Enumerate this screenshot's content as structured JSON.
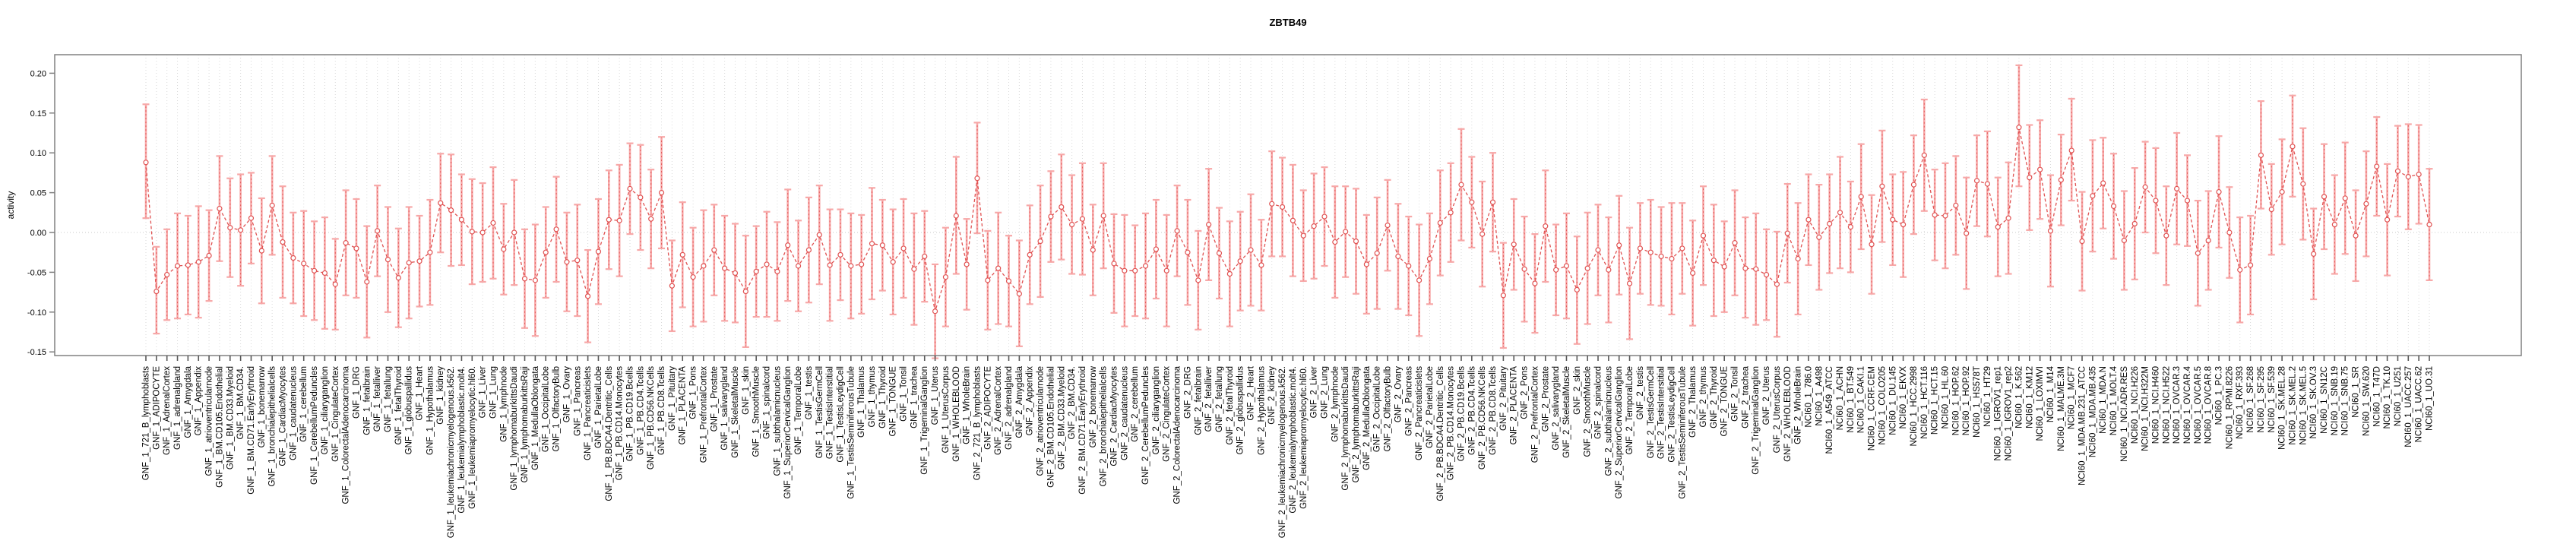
{
  "title": "ZBTB49",
  "ylabel": "activity",
  "chart_data": {
    "type": "line",
    "title": "ZBTB49",
    "xlabel": "",
    "ylabel": "activity",
    "legend": "none",
    "grid": "vertical dotted gridline per category; horizontal dotted line at 0.00",
    "ylim": [
      -0.155,
      0.223
    ],
    "ytick_values": [
      0.2,
      0.15,
      0.1,
      0.05,
      0.0,
      -0.05,
      -0.1,
      -0.15
    ],
    "ytick_labels": [
      "0.20",
      "0.15",
      "0.10",
      "0.05",
      "0.00",
      "-0.05",
      "-0.10",
      "-0.15"
    ],
    "series_name": "activity",
    "line_color": "#e05252",
    "errorbar_color": "#f7a8a8",
    "marker": "open-circle",
    "categories": [
      "GNF_1_721_B_lymphoblasts",
      "GNF_1_ADIPOCYTE",
      "GNF_1_AdrenalCortex",
      "GNF_1_adrenalgland",
      "GNF_1_Amygdala",
      "GNF_1_Appendix",
      "GNF_1_atrioventricularnode",
      "GNF_1_BM.CD105.Endothelial",
      "GNF_1_BM.CD33.Myeloid",
      "GNF_1_BM.CD34.",
      "GNF_1_BM.CD71.EarlyErythroid",
      "GNF_1_bonemarrow",
      "GNF_1_bronchialepithelialcells",
      "GNF_1_CardiacMyocytes",
      "GNF_1_caudatenucleus",
      "GNF_1_cerebellum",
      "GNF_1_CerebellumPeduncles",
      "GNF_1_ciliaryganglion",
      "GNF_1_CingulateCortex",
      "GNF_1_ColorectalAdenocarcinoma",
      "GNF_1_DRG",
      "GNF_1_fetalbrain",
      "GNF_1_fetalliver",
      "GNF_1_fetallung",
      "GNF_1_fetalThyroid",
      "GNF_1_globuspallidus",
      "GNF_1_Heart",
      "GNF_1_Hypothalamus",
      "GNF_1_kidney",
      "GNF_1_leukemiachronicmyelogenous.k562.",
      "GNF_1_leukemialymphoblastic.molt4.",
      "GNF_1_leukemiapromyelocytic.hl60.",
      "GNF_1_Liver",
      "GNF_1_Lung",
      "GNF_1_lymphnode",
      "GNF_1_lymphomaburkittsDaudi",
      "GNF_1_lymphomaburkittsRaji",
      "GNF_1_MedullaOblongata",
      "GNF_1_OccipitalLobe",
      "GNF_1_OlfactoryBulb",
      "GNF_1_Ovary",
      "GNF_1_Pancreas",
      "GNF_1_Pancreaticislets",
      "GNF_1_ParietalLobe",
      "GNF_1_PB.BDCA4.Dentritic_Cells",
      "GNF_1_PB.CD14.Monocytes",
      "GNF_1_PB.CD19.Bcells",
      "GNF_1_PB.CD4.Tcells",
      "GNF_1_PB.CD56.NKCells",
      "GNF_1_PB.CD8.Tcells",
      "GNF_1_Pituitary",
      "GNF_1_PLACENTA",
      "GNF_1_Pons",
      "GNF_1_PrefrontalCortex",
      "GNF_1_Prostate",
      "GNF_1_salivarygland",
      "GNF_1_SkeletalMuscle",
      "GNF_1_skin",
      "GNF_1_SmoothMuscle",
      "GNF_1_spinalcord",
      "GNF_1_subthalamicnucleus",
      "GNF_1_SuperiorCervicalGanglion",
      "GNF_1_TemporalLobe",
      "GNF_1_testis",
      "GNF_1_TestisGermCell",
      "GNF_1_TestisInterstitial",
      "GNF_1_TestisLeydigCell",
      "GNF_1_TestisSeminiferousTubule",
      "GNF_1_Thalamus",
      "GNF_1_thymus",
      "GNF_1_Thyroid",
      "GNF_1_TONGUE",
      "GNF_1_Tonsil",
      "GNF_1_trachea",
      "GNF_1_TrigeminalGanglion",
      "GNF_1_Uterus",
      "GNF_1_UterusCorpus",
      "GNF_1_WHOLEBLOOD",
      "GNF_1_WholeBrain",
      "GNF_2_721_B_lymphoblasts",
      "GNF_2_ADIPOCYTE",
      "GNF_2_AdrenalCortex",
      "GNF_2_adrenalgland",
      "GNF_2_Amygdala",
      "GNF_2_Appendix",
      "GNF_2_atrioventricularnode",
      "GNF_2_BM.CD105.Endothelial",
      "GNF_2_BM.CD33.Myeloid",
      "GNF_2_BM.CD34.",
      "GNF_2_BM.CD71.EarlyErythroid",
      "GNF_2_bonemarrow",
      "GNF_2_bronchialepithelialcells",
      "GNF_2_CardiacMyocytes",
      "GNF_2_caudatenucleus",
      "GNF_2_cerebellum",
      "GNF_2_CerebellumPeduncles",
      "GNF_2_ciliaryganglion",
      "GNF_2_CingulateCortex",
      "GNF_2_ColorectalAdenocarcinoma",
      "GNF_2_DRG",
      "GNF_2_fetalbrain",
      "GNF_2_fetalliver",
      "GNF_2_fetallung",
      "GNF_2_fetalThyroid",
      "GNF_2_globuspallidus",
      "GNF_2_Heart",
      "GNF_2_Hypothalamus",
      "GNF_2_kidney",
      "GNF_2_leukemiachronicmyelogenous.k562.",
      "GNF_2_leukemialymphoblastic.molt4.",
      "GNF_2_leukemiapromyelocytic.hl60.",
      "GNF_2_Liver",
      "GNF_2_Lung",
      "GNF_2_lymphnode",
      "GNF_2_lymphomaburkittsDaudi",
      "GNF_2_lymphomaburkittsRaji",
      "GNF_2_MedullaOblongata",
      "GNF_2_OccipitalLobe",
      "GNF_2_OlfactoryBulb",
      "GNF_2_Ovary",
      "GNF_2_Pancreas",
      "GNF_2_Pancreaticislets",
      "GNF_2_ParietalLobe",
      "GNF_2_PB.BDCA4.Dentritic_Cells",
      "GNF_2_PB.CD14.Monocytes",
      "GNF_2_PB.CD19.Bcells",
      "GNF_2_PB.CD4.Tcells",
      "GNF_2_PB.CD56.NKCells",
      "GNF_2_PB.CD8.Tcells",
      "GNF_2_Pituitary",
      "GNF_2_PLACENTA",
      "GNF_2_Pons",
      "GNF_2_PrefrontalCortex",
      "GNF_2_Prostate",
      "GNF_2_salivarygland",
      "GNF_2_SkeletalMuscle",
      "GNF_2_skin",
      "GNF_2_SmoothMuscle",
      "GNF_2_spinalcord",
      "GNF_2_subthalamicnucleus",
      "GNF_2_SuperiorCervicalGanglion",
      "GNF_2_TemporalLobe",
      "GNF_2_testis",
      "GNF_2_TestisGermCell",
      "GNF_2_TestisInterstitial",
      "GNF_2_TestisLeydigCell",
      "GNF_2_TestisSeminiferousTubule",
      "GNF_2_Thalamus",
      "GNF_2_thymus",
      "GNF_2_Thyroid",
      "GNF_2_TONGUE",
      "GNF_2_Tonsil",
      "GNF_2_trachea",
      "GNF_2_TrigeminalGanglion",
      "GNF_2_Uterus",
      "GNF_2_UterusCorpus",
      "GNF_2_WHOLEBLOOD",
      "GNF_2_WholeBrain",
      "NCI60_1_786.0",
      "NCI60_1_A498",
      "NCI60_1_A549_ATCC",
      "NCI60_1_ACHN",
      "NCI60_1_BT.549",
      "NCI60_1_CAKI.1",
      "NCI60_1_CCRF.CEM",
      "NCI60_1_COLO205",
      "NCI60_1_DU.145",
      "NCI60_1_EKVX",
      "NCI60_1_HCC.2998",
      "NCI60_1_HCT.116",
      "NCI60_1_HCT.15",
      "NCI60_1_HL.60",
      "NCI60_1_HOP.62",
      "NCI60_1_HOP.92",
      "NCI60_1_HS578T",
      "NCI60_1_HT29",
      "NCI60_1_IGROV1_rep1",
      "NCI60_1_IGROV1_rep2",
      "NCI60_1_K.562",
      "NCI60_1_KM12",
      "NCI60_1_LOXIMVI",
      "NCI60_1_M14",
      "NCI60_1_MALME.3M",
      "NCI60_1_MCF7",
      "NCI60_1_MDA.MB.231_ATCC",
      "NCI60_1_MDA.MB.435",
      "NCI60_1_MDA.N",
      "NCI60_1_MOLT.4",
      "NCI60_1_NCI.ADR.RES",
      "NCI60_1_NCI.H226",
      "NCI60_1_NCI.H322M",
      "NCI60_1_NCI.H460",
      "NCI60_1_NCI.H522",
      "NCI60_1_OVCAR.3",
      "NCI60_1_OVCAR.4",
      "NCI60_1_OVCAR.5",
      "NCI60_1_OVCAR.8",
      "NCI60_1_PC.3",
      "NCI60_1_RPMI.8226",
      "NCI60_1_RXF.393",
      "NCI60_1_SF.268",
      "NCI60_1_SF.295",
      "NCI60_1_SF.539",
      "NCI60_1_SK.MEL.28",
      "NCI60_1_SK.MEL.2",
      "NCI60_1_SK.MEL.5",
      "NCI60_1_SK.OV.3",
      "NCI60_1_SN12C",
      "NCI60_1_SNB.19",
      "NCI60_1_SNB.75",
      "NCI60_1_SR",
      "NCI60_1_SW.620",
      "NCI60_1_T47D",
      "NCI60_1_TK.10",
      "NCI60_1_U251",
      "NCI60_1_UACC.257",
      "NCI60_1_UACC.62",
      "NCI60_1_UO.31"
    ],
    "values": [
      0.088,
      -0.074,
      -0.053,
      -0.042,
      -0.041,
      -0.037,
      -0.029,
      0.03,
      0.006,
      0.003,
      0.018,
      -0.023,
      0.034,
      -0.012,
      -0.032,
      -0.039,
      -0.048,
      -0.051,
      -0.065,
      -0.013,
      -0.02,
      -0.062,
      0.002,
      -0.034,
      -0.057,
      -0.038,
      -0.036,
      -0.025,
      0.037,
      0.028,
      0.016,
      0.001,
      0.0,
      0.012,
      -0.021,
      0.0,
      -0.058,
      -0.06,
      -0.025,
      0.004,
      -0.037,
      -0.035,
      -0.08,
      -0.024,
      0.016,
      0.015,
      0.055,
      0.044,
      0.017,
      0.05,
      -0.067,
      -0.028,
      -0.056,
      -0.042,
      -0.022,
      -0.045,
      -0.051,
      -0.074,
      -0.049,
      -0.04,
      -0.049,
      -0.016,
      -0.042,
      -0.022,
      -0.003,
      -0.041,
      -0.028,
      -0.042,
      -0.04,
      -0.014,
      -0.016,
      -0.037,
      -0.02,
      -0.046,
      -0.03,
      -0.099,
      -0.056,
      0.021,
      -0.04,
      0.068,
      -0.06,
      -0.045,
      -0.061,
      -0.077,
      -0.028,
      -0.011,
      0.02,
      0.032,
      0.01,
      0.017,
      -0.022,
      0.021,
      -0.039,
      -0.048,
      -0.048,
      -0.042,
      -0.021,
      -0.048,
      0.002,
      -0.025,
      -0.06,
      0.01,
      -0.026,
      -0.052,
      -0.036,
      -0.022,
      -0.041,
      0.036,
      0.032,
      0.015,
      -0.004,
      0.008,
      0.02,
      -0.012,
      0.001,
      -0.011,
      -0.04,
      -0.026,
      0.009,
      -0.03,
      -0.042,
      -0.06,
      -0.033,
      0.012,
      0.025,
      0.06,
      0.038,
      -0.002,
      0.038,
      -0.079,
      -0.015,
      -0.046,
      -0.064,
      0.008,
      -0.047,
      -0.042,
      -0.072,
      -0.045,
      -0.022,
      -0.047,
      -0.016,
      -0.064,
      -0.02,
      -0.025,
      -0.03,
      -0.033,
      -0.02,
      -0.051,
      -0.004,
      -0.035,
      -0.043,
      -0.013,
      -0.045,
      -0.046,
      -0.053,
      -0.065,
      -0.001,
      -0.033,
      0.016,
      -0.006,
      0.011,
      0.025,
      0.007,
      0.045,
      -0.015,
      0.058,
      0.016,
      0.01,
      0.06,
      0.097,
      0.022,
      0.021,
      0.034,
      -0.001,
      0.065,
      0.061,
      0.007,
      0.018,
      0.132,
      0.069,
      0.079,
      0.002,
      0.066,
      0.103,
      -0.011,
      0.046,
      0.062,
      0.033,
      -0.01,
      0.011,
      0.057,
      0.04,
      -0.004,
      0.055,
      0.04,
      -0.026,
      -0.01,
      0.051,
      0.0,
      -0.047,
      -0.041,
      0.097,
      0.029,
      0.051,
      0.108,
      0.061,
      -0.027,
      0.045,
      0.01,
      0.043,
      -0.004,
      0.036,
      0.083,
      0.016,
      0.077,
      0.07,
      0.073,
      0.01
    ],
    "ci_low": [
      0.018,
      -0.127,
      -0.11,
      -0.108,
      -0.103,
      -0.107,
      -0.086,
      -0.036,
      -0.056,
      -0.067,
      -0.039,
      -0.089,
      -0.028,
      -0.082,
      -0.089,
      -0.105,
      -0.11,
      -0.121,
      -0.122,
      -0.079,
      -0.082,
      -0.132,
      -0.055,
      -0.1,
      -0.119,
      -0.108,
      -0.093,
      -0.091,
      -0.025,
      -0.042,
      -0.041,
      -0.065,
      -0.062,
      -0.058,
      -0.078,
      -0.066,
      -0.12,
      -0.13,
      -0.082,
      -0.062,
      -0.099,
      -0.105,
      -0.138,
      -0.09,
      -0.046,
      -0.055,
      -0.002,
      -0.022,
      -0.045,
      -0.02,
      -0.124,
      -0.094,
      -0.118,
      -0.112,
      -0.079,
      -0.111,
      -0.113,
      -0.144,
      -0.106,
      -0.106,
      -0.111,
      -0.086,
      -0.099,
      -0.088,
      -0.065,
      -0.111,
      -0.085,
      -0.108,
      -0.102,
      -0.084,
      -0.073,
      -0.103,
      -0.082,
      -0.116,
      -0.087,
      -0.158,
      -0.118,
      -0.052,
      -0.097,
      -0.001,
      -0.122,
      -0.115,
      -0.118,
      -0.143,
      -0.09,
      -0.081,
      -0.037,
      -0.034,
      -0.052,
      -0.053,
      -0.079,
      -0.045,
      -0.101,
      -0.118,
      -0.105,
      -0.108,
      -0.083,
      -0.118,
      -0.055,
      -0.091,
      -0.122,
      -0.06,
      -0.083,
      -0.118,
      -0.098,
      -0.092,
      -0.098,
      -0.03,
      -0.03,
      -0.055,
      -0.061,
      -0.058,
      -0.042,
      -0.082,
      -0.056,
      -0.077,
      -0.102,
      -0.096,
      -0.048,
      -0.096,
      -0.104,
      -0.13,
      -0.09,
      -0.054,
      -0.037,
      -0.01,
      -0.019,
      -0.068,
      -0.024,
      -0.145,
      -0.072,
      -0.112,
      -0.126,
      -0.062,
      -0.104,
      -0.108,
      -0.14,
      -0.115,
      -0.079,
      -0.113,
      -0.078,
      -0.134,
      -0.077,
      -0.091,
      -0.092,
      -0.103,
      -0.077,
      -0.117,
      -0.066,
      -0.105,
      -0.1,
      -0.079,
      -0.107,
      -0.116,
      -0.11,
      -0.131,
      -0.063,
      -0.103,
      -0.041,
      -0.072,
      -0.051,
      -0.045,
      -0.05,
      -0.021,
      -0.077,
      -0.012,
      -0.041,
      -0.056,
      -0.002,
      0.027,
      -0.035,
      -0.045,
      -0.028,
      -0.071,
      0.008,
      -0.005,
      -0.055,
      -0.052,
      0.058,
      0.003,
      0.017,
      -0.068,
      0.009,
      0.04,
      -0.073,
      -0.024,
      0.005,
      -0.033,
      -0.072,
      -0.059,
      0.0,
      -0.026,
      -0.066,
      -0.015,
      -0.017,
      -0.092,
      -0.072,
      -0.019,
      -0.057,
      -0.113,
      -0.103,
      0.03,
      -0.028,
      -0.015,
      0.045,
      -0.009,
      -0.084,
      -0.021,
      -0.052,
      -0.027,
      -0.061,
      -0.03,
      0.021,
      -0.054,
      0.02,
      0.004,
      0.011,
      -0.06
    ],
    "ci_high": [
      0.161,
      -0.018,
      0.004,
      0.024,
      0.021,
      0.033,
      0.028,
      0.096,
      0.068,
      0.073,
      0.075,
      0.043,
      0.096,
      0.058,
      0.025,
      0.027,
      0.014,
      0.019,
      -0.008,
      0.053,
      0.042,
      0.008,
      0.059,
      0.032,
      0.005,
      0.032,
      0.021,
      0.041,
      0.099,
      0.098,
      0.073,
      0.067,
      0.062,
      0.082,
      0.036,
      0.066,
      0.004,
      0.01,
      0.032,
      0.07,
      0.025,
      0.035,
      -0.022,
      0.042,
      0.078,
      0.085,
      0.112,
      0.11,
      0.079,
      0.12,
      -0.01,
      0.038,
      0.006,
      0.028,
      0.035,
      0.021,
      0.011,
      -0.004,
      0.008,
      0.026,
      0.013,
      0.054,
      0.015,
      0.044,
      0.059,
      0.029,
      0.029,
      0.024,
      0.022,
      0.056,
      0.041,
      0.029,
      0.042,
      0.024,
      0.027,
      -0.04,
      0.006,
      0.095,
      0.017,
      0.138,
      0.002,
      0.025,
      -0.004,
      -0.01,
      0.034,
      0.059,
      0.077,
      0.098,
      0.072,
      0.087,
      0.035,
      0.087,
      0.023,
      0.022,
      0.009,
      0.024,
      0.041,
      0.022,
      0.059,
      0.041,
      0.002,
      0.08,
      0.031,
      0.014,
      0.026,
      0.048,
      0.016,
      0.102,
      0.094,
      0.085,
      0.053,
      0.074,
      0.082,
      0.058,
      0.058,
      0.055,
      0.022,
      0.044,
      0.066,
      0.036,
      0.02,
      0.01,
      0.024,
      0.078,
      0.087,
      0.13,
      0.095,
      0.064,
      0.1,
      -0.013,
      0.042,
      0.02,
      -0.002,
      0.078,
      0.01,
      0.024,
      -0.005,
      0.025,
      0.035,
      0.019,
      0.046,
      0.006,
      0.037,
      0.041,
      0.032,
      0.037,
      0.037,
      0.015,
      0.058,
      0.035,
      0.014,
      0.053,
      0.019,
      0.024,
      0.004,
      0.001,
      0.061,
      0.037,
      0.073,
      0.06,
      0.073,
      0.095,
      0.064,
      0.111,
      0.047,
      0.128,
      0.073,
      0.076,
      0.122,
      0.167,
      0.079,
      0.087,
      0.096,
      0.069,
      0.122,
      0.127,
      0.069,
      0.088,
      0.21,
      0.135,
      0.141,
      0.072,
      0.123,
      0.168,
      0.051,
      0.116,
      0.119,
      0.099,
      0.052,
      0.081,
      0.114,
      0.106,
      0.058,
      0.125,
      0.097,
      0.04,
      0.052,
      0.121,
      0.057,
      0.019,
      0.021,
      0.165,
      0.086,
      0.117,
      0.172,
      0.131,
      0.03,
      0.111,
      0.072,
      0.113,
      0.053,
      0.102,
      0.145,
      0.086,
      0.134,
      0.136,
      0.135,
      0.08
    ]
  }
}
